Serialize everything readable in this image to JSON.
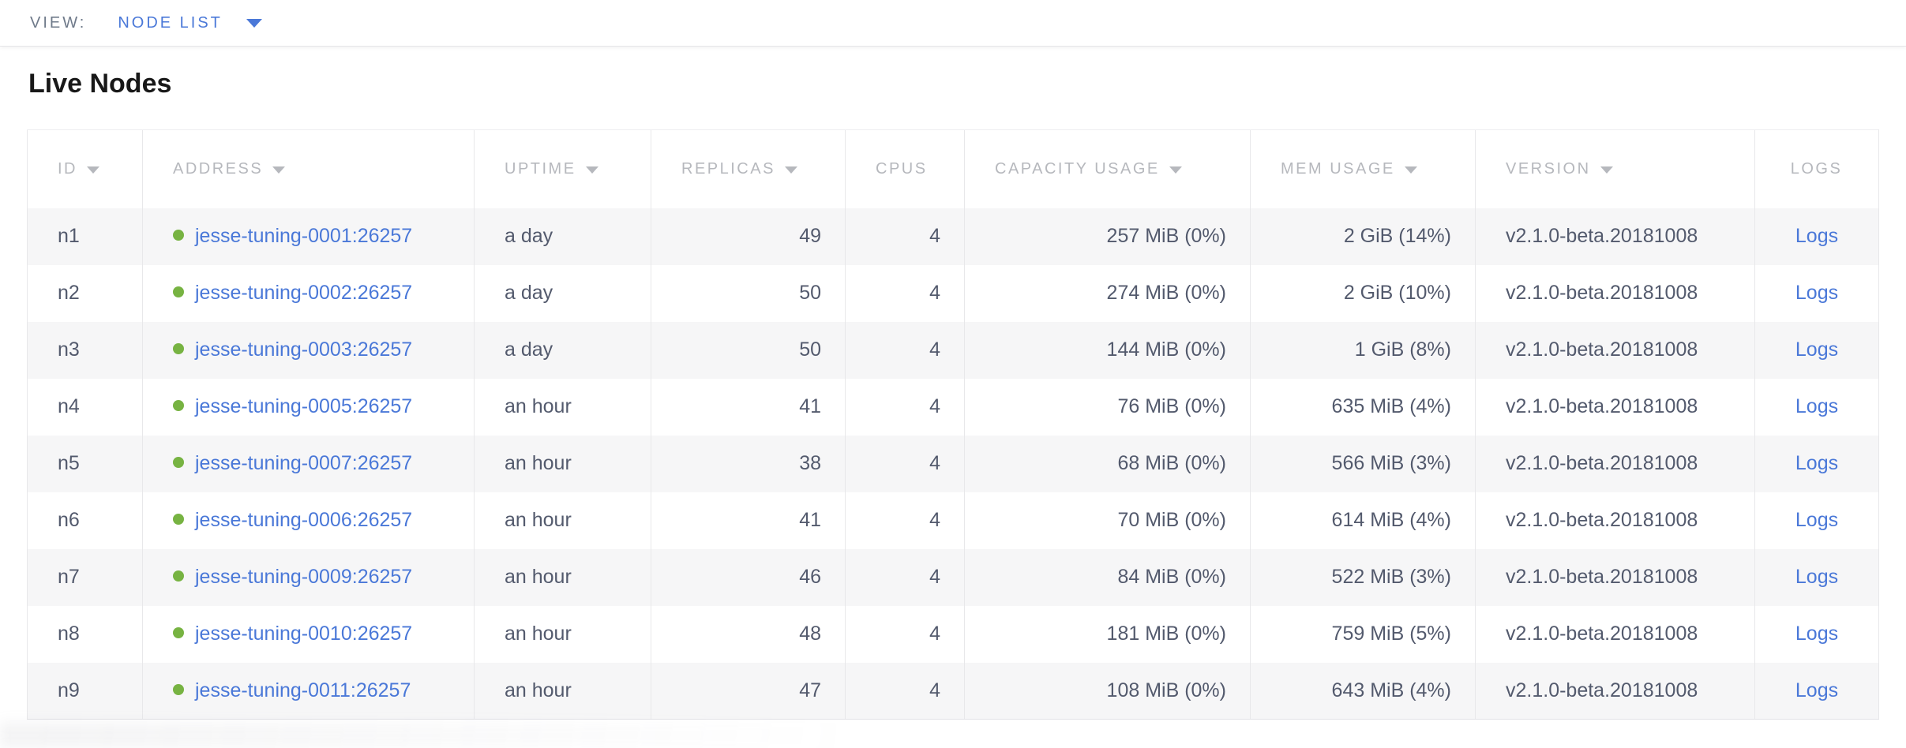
{
  "view_bar": {
    "label": "VIEW:",
    "selected_view": "NODE LIST"
  },
  "page": {
    "title": "Live Nodes"
  },
  "table": {
    "columns": [
      {
        "key": "id",
        "label": "ID",
        "sortable": true,
        "align": "left"
      },
      {
        "key": "address",
        "label": "ADDRESS",
        "sortable": true,
        "align": "left"
      },
      {
        "key": "uptime",
        "label": "UPTIME",
        "sortable": true,
        "align": "left"
      },
      {
        "key": "replicas",
        "label": "REPLICAS",
        "sortable": true,
        "align": "right"
      },
      {
        "key": "cpus",
        "label": "CPUS",
        "sortable": false,
        "align": "right"
      },
      {
        "key": "capacity",
        "label": "CAPACITY USAGE",
        "sortable": true,
        "align": "right"
      },
      {
        "key": "mem",
        "label": "MEM USAGE",
        "sortable": true,
        "align": "right"
      },
      {
        "key": "version",
        "label": "VERSION",
        "sortable": true,
        "align": "left"
      },
      {
        "key": "logs",
        "label": "LOGS",
        "sortable": false,
        "align": "center"
      }
    ],
    "rows": [
      {
        "id": "n1",
        "address": "jesse-tuning-0001:26257",
        "uptime": "a day",
        "replicas": "49",
        "cpus": "4",
        "capacity": "257 MiB (0%)",
        "mem": "2 GiB (14%)",
        "version": "v2.1.0-beta.20181008",
        "logs": "Logs"
      },
      {
        "id": "n2",
        "address": "jesse-tuning-0002:26257",
        "uptime": "a day",
        "replicas": "50",
        "cpus": "4",
        "capacity": "274 MiB (0%)",
        "mem": "2 GiB (10%)",
        "version": "v2.1.0-beta.20181008",
        "logs": "Logs"
      },
      {
        "id": "n3",
        "address": "jesse-tuning-0003:26257",
        "uptime": "a day",
        "replicas": "50",
        "cpus": "4",
        "capacity": "144 MiB (0%)",
        "mem": "1 GiB (8%)",
        "version": "v2.1.0-beta.20181008",
        "logs": "Logs"
      },
      {
        "id": "n4",
        "address": "jesse-tuning-0005:26257",
        "uptime": "an hour",
        "replicas": "41",
        "cpus": "4",
        "capacity": "76 MiB (0%)",
        "mem": "635 MiB (4%)",
        "version": "v2.1.0-beta.20181008",
        "logs": "Logs"
      },
      {
        "id": "n5",
        "address": "jesse-tuning-0007:26257",
        "uptime": "an hour",
        "replicas": "38",
        "cpus": "4",
        "capacity": "68 MiB (0%)",
        "mem": "566 MiB (3%)",
        "version": "v2.1.0-beta.20181008",
        "logs": "Logs"
      },
      {
        "id": "n6",
        "address": "jesse-tuning-0006:26257",
        "uptime": "an hour",
        "replicas": "41",
        "cpus": "4",
        "capacity": "70 MiB (0%)",
        "mem": "614 MiB (4%)",
        "version": "v2.1.0-beta.20181008",
        "logs": "Logs"
      },
      {
        "id": "n7",
        "address": "jesse-tuning-0009:26257",
        "uptime": "an hour",
        "replicas": "46",
        "cpus": "4",
        "capacity": "84 MiB (0%)",
        "mem": "522 MiB (3%)",
        "version": "v2.1.0-beta.20181008",
        "logs": "Logs"
      },
      {
        "id": "n8",
        "address": "jesse-tuning-0010:26257",
        "uptime": "an hour",
        "replicas": "48",
        "cpus": "4",
        "capacity": "181 MiB (0%)",
        "mem": "759 MiB (5%)",
        "version": "v2.1.0-beta.20181008",
        "logs": "Logs"
      },
      {
        "id": "n9",
        "address": "jesse-tuning-0011:26257",
        "uptime": "an hour",
        "replicas": "47",
        "cpus": "4",
        "capacity": "108 MiB (0%)",
        "mem": "643 MiB (4%)",
        "version": "v2.1.0-beta.20181008",
        "logs": "Logs"
      }
    ]
  },
  "colors": {
    "accent_blue": "#4a78d8",
    "live_green": "#77b342",
    "header_gray": "#b6b8bd",
    "body_text": "#535a6d",
    "row_alt_bg": "#f6f6f7",
    "border": "#e8e8ea"
  }
}
